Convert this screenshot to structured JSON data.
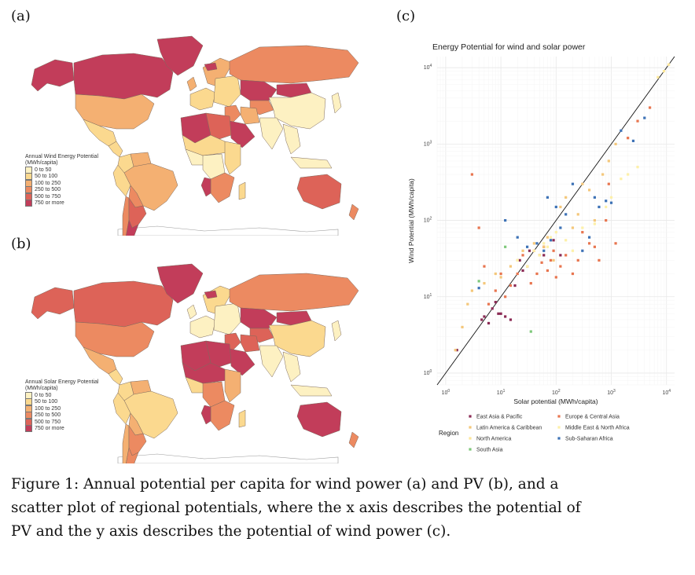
{
  "panels": {
    "a": "(a)",
    "b": "(b)",
    "c": "(c)"
  },
  "palette": {
    "land_bins": [
      "#fdf1c2",
      "#fbd98f",
      "#f4b072",
      "#ec8a61",
      "#dd6358",
      "#c23d5a"
    ],
    "ocean": "#ffffff",
    "border": "#9a9a9a"
  },
  "map_wind": {
    "legend_title_1": "Annual Wind Energy Potential",
    "legend_title_2": "(MWh/capita)",
    "bins": [
      "0 to 50",
      "50 to 100",
      "100 to 250",
      "250 to 500",
      "500 to 750",
      "750 or more"
    ],
    "regions": [
      {
        "name": "alaska",
        "bin": 5
      },
      {
        "name": "canada",
        "bin": 5
      },
      {
        "name": "greenland",
        "bin": 5
      },
      {
        "name": "usa",
        "bin": 2
      },
      {
        "name": "mexico",
        "bin": 1
      },
      {
        "name": "central-america",
        "bin": 1
      },
      {
        "name": "colombia",
        "bin": 1
      },
      {
        "name": "venezuela",
        "bin": 2
      },
      {
        "name": "brazil",
        "bin": 2
      },
      {
        "name": "peru",
        "bin": 1
      },
      {
        "name": "bolivia",
        "bin": 3
      },
      {
        "name": "chile",
        "bin": 3
      },
      {
        "name": "argentina",
        "bin": 4
      },
      {
        "name": "patagonia",
        "bin": 5
      },
      {
        "name": "western-europe",
        "bin": 1
      },
      {
        "name": "scandinavia",
        "bin": 2
      },
      {
        "name": "eastern-europe",
        "bin": 1
      },
      {
        "name": "russia",
        "bin": 3
      },
      {
        "name": "kazakhstan",
        "bin": 5
      },
      {
        "name": "central-asia",
        "bin": 3
      },
      {
        "name": "mongolia",
        "bin": 5
      },
      {
        "name": "china",
        "bin": 0
      },
      {
        "name": "india",
        "bin": 0
      },
      {
        "name": "southeast-asia",
        "bin": 0
      },
      {
        "name": "japan",
        "bin": 0
      },
      {
        "name": "middle-east",
        "bin": 3
      },
      {
        "name": "iran",
        "bin": 2
      },
      {
        "name": "arabia",
        "bin": 5
      },
      {
        "name": "north-africa-west",
        "bin": 5
      },
      {
        "name": "north-africa-east",
        "bin": 4
      },
      {
        "name": "sahel",
        "bin": 1
      },
      {
        "name": "west-africa",
        "bin": 0
      },
      {
        "name": "central-africa",
        "bin": 0
      },
      {
        "name": "east-africa",
        "bin": 1
      },
      {
        "name": "southern-africa",
        "bin": 3
      },
      {
        "name": "namibia-botswana",
        "bin": 5
      },
      {
        "name": "madagascar",
        "bin": 1
      },
      {
        "name": "australia",
        "bin": 4
      },
      {
        "name": "indonesia",
        "bin": 0
      },
      {
        "name": "new-zealand",
        "bin": 3
      },
      {
        "name": "uk-ireland",
        "bin": 2
      },
      {
        "name": "iceland",
        "bin": 5
      }
    ]
  },
  "map_solar": {
    "legend_title_1": "Annual Solar Energy Potential",
    "legend_title_2": "(MWh/capita)",
    "bins": [
      "0 to 50",
      "50 to 100",
      "100 to 250",
      "250 to 500",
      "500 to 750",
      "750 or more"
    ],
    "regions": [
      {
        "name": "alaska",
        "bin": 4
      },
      {
        "name": "canada",
        "bin": 4
      },
      {
        "name": "greenland",
        "bin": 5
      },
      {
        "name": "usa",
        "bin": 3
      },
      {
        "name": "mexico",
        "bin": 2
      },
      {
        "name": "central-america",
        "bin": 1
      },
      {
        "name": "colombia",
        "bin": 1
      },
      {
        "name": "venezuela",
        "bin": 2
      },
      {
        "name": "brazil",
        "bin": 1
      },
      {
        "name": "peru",
        "bin": 1
      },
      {
        "name": "bolivia",
        "bin": 2
      },
      {
        "name": "chile",
        "bin": 2
      },
      {
        "name": "argentina",
        "bin": 3
      },
      {
        "name": "patagonia",
        "bin": 3
      },
      {
        "name": "western-europe",
        "bin": 0
      },
      {
        "name": "scandinavia",
        "bin": 1
      },
      {
        "name": "eastern-europe",
        "bin": 0
      },
      {
        "name": "russia",
        "bin": 3
      },
      {
        "name": "kazakhstan",
        "bin": 5
      },
      {
        "name": "central-asia",
        "bin": 4
      },
      {
        "name": "mongolia",
        "bin": 5
      },
      {
        "name": "china",
        "bin": 1
      },
      {
        "name": "india",
        "bin": 0
      },
      {
        "name": "southeast-asia",
        "bin": 0
      },
      {
        "name": "japan",
        "bin": 0
      },
      {
        "name": "middle-east",
        "bin": 4
      },
      {
        "name": "iran",
        "bin": 4
      },
      {
        "name": "arabia",
        "bin": 5
      },
      {
        "name": "north-africa-west",
        "bin": 5
      },
      {
        "name": "north-africa-east",
        "bin": 5
      },
      {
        "name": "sahel",
        "bin": 5
      },
      {
        "name": "west-africa",
        "bin": 1
      },
      {
        "name": "central-africa",
        "bin": 3
      },
      {
        "name": "east-africa",
        "bin": 2
      },
      {
        "name": "southern-africa",
        "bin": 3
      },
      {
        "name": "namibia-botswana",
        "bin": 5
      },
      {
        "name": "madagascar",
        "bin": 1
      },
      {
        "name": "australia",
        "bin": 5
      },
      {
        "name": "indonesia",
        "bin": 0
      },
      {
        "name": "new-zealand",
        "bin": 3
      },
      {
        "name": "uk-ireland",
        "bin": 0
      },
      {
        "name": "iceland",
        "bin": 5
      }
    ]
  },
  "chart_data": {
    "type": "scatter",
    "title": "Energy Potential for wind and solar power",
    "xlabel": "Solar potential (MWh/capita)",
    "ylabel": "Wind Potential (MWh/capita)",
    "xscale": "log",
    "yscale": "log",
    "xlim": [
      0.7,
      14000
    ],
    "ylim": [
      0.7,
      14000
    ],
    "xticks": [
      {
        "base": "10",
        "exp": "0"
      },
      {
        "base": "10",
        "exp": "1"
      },
      {
        "base": "10",
        "exp": "2"
      },
      {
        "base": "10",
        "exp": "3"
      },
      {
        "base": "10",
        "exp": "4"
      }
    ],
    "yticks": [
      {
        "base": "10",
        "exp": "0"
      },
      {
        "base": "10",
        "exp": "1"
      },
      {
        "base": "10",
        "exp": "2"
      },
      {
        "base": "10",
        "exp": "3"
      },
      {
        "base": "10",
        "exp": "4"
      }
    ],
    "reference_line": "y = x",
    "grid": true,
    "legend_title": "Region",
    "legend_position": "bottom",
    "series": [
      {
        "name": "East Asia & Pacific",
        "color": "#8b2b55",
        "x": [
          1.6,
          4.5,
          5,
          6,
          7,
          8,
          9,
          10,
          12,
          15,
          18,
          22,
          25,
          33,
          60,
          90,
          120
        ],
        "y": [
          2,
          5,
          5.5,
          4.5,
          7,
          8.5,
          6,
          6,
          5.5,
          5,
          14,
          30,
          22,
          40,
          35,
          55,
          35
        ]
      },
      {
        "name": "Europe & Central Asia",
        "color": "#e8754f",
        "x": [
          3,
          4,
          5,
          6,
          8,
          10,
          12,
          15,
          20,
          25,
          30,
          35,
          40,
          45,
          50,
          55,
          60,
          70,
          80,
          90,
          100,
          120,
          150,
          200,
          250,
          300,
          400,
          500,
          600,
          800,
          900,
          1200,
          2000,
          3000,
          5000
        ],
        "y": [
          400,
          80,
          25,
          8,
          12,
          20,
          10,
          14,
          20,
          35,
          25,
          15,
          40,
          20,
          35,
          28,
          45,
          22,
          30,
          40,
          18,
          25,
          35,
          20,
          30,
          70,
          50,
          45,
          30,
          100,
          300,
          50,
          1200,
          2000,
          3000
        ]
      },
      {
        "name": "Latin America & Caribbean",
        "color": "#f4c77a",
        "x": [
          1.5,
          2,
          2.5,
          3,
          5,
          8,
          10,
          15,
          20,
          25,
          30,
          40,
          50,
          60,
          70,
          90,
          120,
          150,
          200,
          250,
          300,
          400,
          500,
          700,
          900,
          1200
        ],
        "y": [
          2,
          4,
          8,
          12,
          15,
          20,
          18,
          25,
          30,
          40,
          25,
          50,
          35,
          45,
          60,
          30,
          150,
          200,
          80,
          120,
          300,
          250,
          100,
          400,
          600,
          1000
        ]
      },
      {
        "name": "Middle East & North Africa",
        "color": "#fdf0a8",
        "x": [
          20,
          30,
          40,
          50,
          60,
          70,
          80,
          100,
          150,
          200,
          300,
          500,
          800,
          1000,
          1500,
          2000,
          3000
        ],
        "y": [
          30,
          25,
          40,
          35,
          50,
          45,
          60,
          70,
          55,
          40,
          80,
          90,
          150,
          200,
          350,
          400,
          500
        ]
      },
      {
        "name": "North America",
        "color": "#fde79a",
        "x": [
          7000,
          9000,
          11000
        ],
        "y": [
          7500,
          9000,
          11000
        ]
      },
      {
        "name": "Sub-Saharan Africa",
        "color": "#3d72b6",
        "x": [
          4,
          12,
          20,
          30,
          45,
          60,
          70,
          80,
          100,
          120,
          150,
          200,
          300,
          400,
          500,
          600,
          800,
          1000,
          1500,
          2500,
          4000
        ],
        "y": [
          13,
          100,
          60,
          45,
          50,
          40,
          200,
          55,
          150,
          80,
          120,
          300,
          40,
          60,
          200,
          150,
          180,
          170,
          1500,
          1100,
          2200
        ]
      },
      {
        "name": "South Asia",
        "color": "#7ec87a",
        "x": [
          4,
          12,
          35
        ],
        "y": [
          16,
          45,
          3.5
        ]
      }
    ]
  },
  "caption": {
    "line1": "Figure 1:  Annual potential per capita for wind power (a) and PV (b), and a",
    "line2": "scatter plot of regional potentials, where the x axis describes the potential of",
    "line3": "PV and the y axis describes the potential of wind power (c)."
  }
}
